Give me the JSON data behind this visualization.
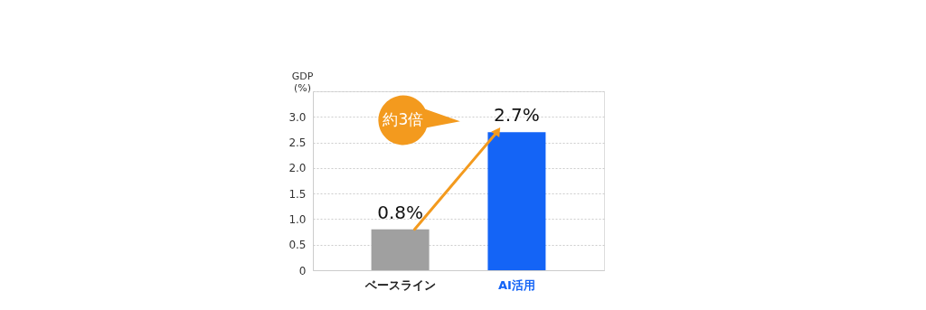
{
  "chart_data": {
    "type": "bar",
    "ylabel": "GDP\n(%)",
    "categories": [
      "ベースライン",
      "AI活用"
    ],
    "values": [
      0.8,
      2.7
    ],
    "colors": [
      "#a0a0a0",
      "#1464f6"
    ],
    "value_labels": [
      "0.8%",
      "2.7%"
    ],
    "ylim": [
      0,
      3.5
    ],
    "yticks": [
      {
        "value": 0,
        "label": "0"
      },
      0.5,
      {
        "value": 1,
        "label": "1.0"
      },
      1.5,
      {
        "value": 2,
        "label": "2.0"
      },
      2.5,
      {
        "value": 3,
        "label": "3.0"
      },
      {
        "value": 3.5,
        "label": null
      }
    ],
    "grid": "y",
    "annotations": [
      "約3倍"
    ]
  }
}
